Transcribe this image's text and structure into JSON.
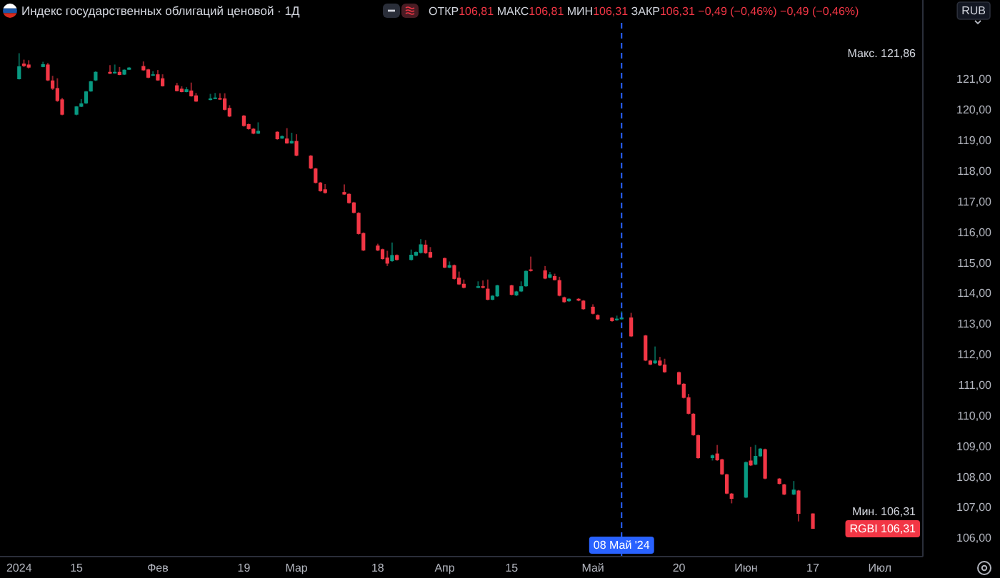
{
  "chart_data": {
    "type": "candlestick",
    "title": "Индекс государственных облигаций ценовой · 1Д",
    "subtitle": "ОТКР106,81 МАКС106,81 МИН106,31 ЗАКР106,31 −0,49 (−0,46%) −0,49 (−0,46%)",
    "x": [
      "2024-01-03",
      "2024-01-04",
      "2024-01-05",
      "2024-01-08",
      "2024-01-09",
      "2024-01-10",
      "2024-01-11",
      "2024-01-12",
      "2024-01-15",
      "2024-01-16",
      "2024-01-17",
      "2024-01-18",
      "2024-01-19",
      "2024-01-22",
      "2024-01-23",
      "2024-01-24",
      "2024-01-25",
      "2024-01-26",
      "2024-01-29",
      "2024-01-30",
      "2024-01-31",
      "2024-02-01",
      "2024-02-02",
      "2024-02-05",
      "2024-02-06",
      "2024-02-07",
      "2024-02-08",
      "2024-02-09",
      "2024-02-12",
      "2024-02-13",
      "2024-02-14",
      "2024-02-15",
      "2024-02-16",
      "2024-02-19",
      "2024-02-20",
      "2024-02-21",
      "2024-02-22",
      "2024-02-26",
      "2024-02-27",
      "2024-02-28",
      "2024-02-29",
      "2024-03-01",
      "2024-03-04",
      "2024-03-05",
      "2024-03-06",
      "2024-03-07",
      "2024-03-11",
      "2024-03-12",
      "2024-03-13",
      "2024-03-14",
      "2024-03-15",
      "2024-03-18",
      "2024-03-19",
      "2024-03-20",
      "2024-03-21",
      "2024-03-22",
      "2024-03-25",
      "2024-03-26",
      "2024-03-27",
      "2024-03-28",
      "2024-03-29",
      "2024-04-01",
      "2024-04-02",
      "2024-04-03",
      "2024-04-04",
      "2024-04-05",
      "2024-04-08",
      "2024-04-09",
      "2024-04-10",
      "2024-04-11",
      "2024-04-12",
      "2024-04-15",
      "2024-04-16",
      "2024-04-17",
      "2024-04-18",
      "2024-04-19",
      "2024-04-22",
      "2024-04-23",
      "2024-04-24",
      "2024-04-25",
      "2024-04-26",
      "2024-04-27",
      "2024-04-29",
      "2024-04-30",
      "2024-05-02",
      "2024-05-03",
      "2024-05-06",
      "2024-05-07",
      "2024-05-08",
      "2024-05-10",
      "2024-05-13",
      "2024-05-14",
      "2024-05-15",
      "2024-05-16",
      "2024-05-17",
      "2024-05-20",
      "2024-05-21",
      "2024-05-22",
      "2024-05-23",
      "2024-05-24",
      "2024-05-27",
      "2024-05-28",
      "2024-05-29",
      "2024-05-30",
      "2024-05-31",
      "2024-06-03",
      "2024-06-04",
      "2024-06-05",
      "2024-06-06",
      "2024-06-07",
      "2024-06-10",
      "2024-06-11",
      "2024-06-13",
      "2024-06-14",
      "2024-06-17"
    ],
    "ohlc": [
      [
        121.01,
        121.86,
        121.0,
        121.43
      ],
      [
        121.52,
        121.65,
        121.41,
        121.44
      ],
      [
        121.49,
        121.63,
        121.36,
        121.39
      ],
      [
        121.41,
        121.58,
        121.4,
        121.5
      ],
      [
        121.49,
        121.54,
        120.95,
        120.97
      ],
      [
        120.97,
        121.12,
        120.66,
        120.7
      ],
      [
        120.72,
        121.04,
        120.27,
        120.3
      ],
      [
        120.35,
        120.4,
        119.83,
        119.85
      ],
      [
        119.85,
        120.13,
        119.83,
        120.12
      ],
      [
        120.11,
        120.36,
        120.1,
        120.22
      ],
      [
        120.22,
        120.63,
        120.2,
        120.61
      ],
      [
        120.61,
        120.96,
        120.6,
        120.94
      ],
      [
        120.97,
        121.27,
        120.95,
        121.25
      ],
      [
        121.25,
        121.47,
        121.18,
        121.19
      ],
      [
        121.2,
        121.49,
        121.19,
        121.25
      ],
      [
        121.25,
        121.41,
        121.14,
        121.15
      ],
      [
        121.16,
        121.33,
        121.15,
        121.32
      ],
      [
        121.32,
        121.41,
        121.31,
        121.39
      ],
      [
        121.44,
        121.59,
        121.29,
        121.3
      ],
      [
        121.33,
        121.35,
        121.04,
        121.06
      ],
      [
        121.14,
        121.27,
        121.12,
        121.17
      ],
      [
        121.17,
        121.31,
        120.96,
        120.97
      ],
      [
        121.04,
        121.17,
        120.77,
        120.78
      ],
      [
        120.81,
        120.89,
        120.61,
        120.62
      ],
      [
        120.7,
        120.78,
        120.58,
        120.59
      ],
      [
        120.59,
        120.75,
        120.58,
        120.68
      ],
      [
        120.64,
        120.9,
        120.44,
        120.45
      ],
      [
        120.48,
        120.56,
        120.27,
        120.28
      ],
      [
        120.33,
        120.53,
        120.32,
        120.38
      ],
      [
        120.37,
        120.56,
        120.36,
        120.41
      ],
      [
        120.39,
        120.55,
        120.34,
        120.35
      ],
      [
        120.38,
        120.55,
        119.99,
        120.01
      ],
      [
        120.07,
        120.16,
        119.77,
        119.79
      ],
      [
        119.82,
        119.84,
        119.46,
        119.48
      ],
      [
        119.54,
        119.56,
        119.36,
        119.38
      ],
      [
        119.39,
        119.41,
        119.21,
        119.23
      ],
      [
        119.23,
        119.6,
        119.22,
        119.32
      ],
      [
        119.29,
        119.31,
        119.03,
        119.05
      ],
      [
        119.07,
        119.17,
        119.06,
        119.15
      ],
      [
        119.07,
        119.41,
        118.9,
        118.91
      ],
      [
        118.91,
        119.26,
        118.9,
        118.99
      ],
      [
        118.99,
        119.21,
        118.49,
        118.51
      ],
      [
        118.51,
        118.53,
        118.07,
        118.09
      ],
      [
        118.09,
        118.11,
        117.6,
        117.62
      ],
      [
        117.63,
        117.65,
        117.33,
        117.35
      ],
      [
        117.41,
        117.58,
        117.27,
        117.29
      ],
      [
        117.32,
        117.57,
        117.23,
        117.24
      ],
      [
        117.26,
        117.28,
        116.94,
        116.96
      ],
      [
        116.98,
        117.0,
        116.62,
        116.64
      ],
      [
        116.64,
        116.66,
        115.93,
        115.95
      ],
      [
        115.98,
        116.0,
        115.39,
        115.41
      ],
      [
        115.57,
        115.63,
        115.39,
        115.41
      ],
      [
        115.45,
        115.47,
        115.11,
        115.13
      ],
      [
        115.18,
        115.4,
        114.9,
        114.98
      ],
      [
        115.06,
        115.67,
        115.04,
        115.26
      ],
      [
        115.26,
        115.28,
        115.08,
        115.1
      ],
      [
        115.1,
        115.44,
        115.08,
        115.27
      ],
      [
        115.24,
        115.38,
        115.22,
        115.36
      ],
      [
        115.33,
        115.78,
        115.31,
        115.61
      ],
      [
        115.6,
        115.75,
        115.3,
        115.32
      ],
      [
        115.36,
        115.52,
        115.16,
        115.18
      ],
      [
        115.16,
        115.18,
        114.83,
        114.85
      ],
      [
        114.85,
        115.05,
        114.83,
        114.93
      ],
      [
        114.93,
        114.95,
        114.46,
        114.48
      ],
      [
        114.52,
        114.72,
        114.28,
        114.3
      ],
      [
        114.32,
        114.46,
        114.17,
        114.19
      ],
      [
        114.19,
        114.4,
        114.18,
        114.24
      ],
      [
        114.24,
        114.43,
        114.17,
        114.19
      ],
      [
        114.16,
        114.46,
        113.78,
        113.8
      ],
      [
        113.8,
        113.95,
        113.78,
        113.93
      ],
      [
        113.91,
        114.29,
        113.89,
        114.27
      ],
      [
        114.27,
        114.29,
        113.94,
        113.96
      ],
      [
        113.94,
        114.09,
        113.92,
        114.07
      ],
      [
        114.07,
        114.4,
        114.05,
        114.24
      ],
      [
        114.24,
        114.76,
        114.22,
        114.74
      ],
      [
        114.79,
        115.21,
        114.72,
        114.74
      ],
      [
        114.76,
        114.9,
        114.47,
        114.49
      ],
      [
        114.52,
        114.71,
        114.5,
        114.63
      ],
      [
        114.57,
        114.65,
        114.43,
        114.44
      ],
      [
        114.44,
        114.55,
        113.91,
        113.93
      ],
      [
        113.88,
        113.9,
        113.7,
        113.72
      ],
      [
        113.75,
        113.85,
        113.73,
        113.83
      ],
      [
        113.83,
        113.85,
        113.75,
        113.77
      ],
      [
        113.77,
        113.79,
        113.47,
        113.49
      ],
      [
        113.57,
        113.65,
        113.32,
        113.34
      ],
      [
        113.3,
        113.32,
        113.14,
        113.16
      ],
      [
        113.21,
        113.23,
        113.08,
        113.1
      ],
      [
        113.13,
        113.28,
        113.11,
        113.18
      ],
      [
        113.16,
        113.42,
        113.14,
        113.22
      ],
      [
        113.22,
        113.37,
        112.58,
        112.6
      ],
      [
        112.63,
        112.65,
        111.79,
        111.81
      ],
      [
        111.81,
        111.83,
        111.66,
        111.68
      ],
      [
        111.72,
        112.27,
        111.7,
        111.81
      ],
      [
        111.81,
        111.93,
        111.63,
        111.65
      ],
      [
        111.68,
        111.87,
        111.41,
        111.43
      ],
      [
        111.43,
        111.45,
        111.01,
        111.03
      ],
      [
        111.05,
        111.07,
        110.57,
        110.59
      ],
      [
        110.61,
        110.72,
        110.05,
        110.07
      ],
      [
        110.07,
        110.09,
        109.35,
        109.37
      ],
      [
        109.37,
        109.39,
        108.6,
        108.62
      ],
      [
        108.62,
        108.74,
        108.54,
        108.71
      ],
      [
        108.77,
        109.05,
        108.53,
        108.55
      ],
      [
        108.58,
        108.6,
        108.07,
        108.09
      ],
      [
        108.09,
        108.11,
        107.44,
        107.46
      ],
      [
        107.46,
        107.48,
        107.14,
        107.29
      ],
      [
        107.33,
        108.51,
        107.31,
        108.49
      ],
      [
        108.54,
        108.99,
        108.36,
        108.38
      ],
      [
        108.41,
        109.05,
        108.39,
        108.69
      ],
      [
        108.68,
        108.95,
        108.66,
        108.93
      ],
      [
        108.91,
        108.93,
        107.93,
        107.95
      ],
      [
        107.95,
        107.97,
        107.76,
        107.78
      ],
      [
        107.76,
        107.78,
        107.41,
        107.43
      ],
      [
        107.43,
        107.87,
        107.41,
        107.59
      ],
      [
        107.56,
        107.58,
        106.55,
        106.8
      ],
      [
        106.81,
        106.81,
        106.31,
        106.31
      ]
    ],
    "colors": [
      "#089981",
      "#f23645",
      "#f23645",
      "#089981",
      "#f23645",
      "#f23645",
      "#f23645",
      "#f23645",
      "#089981",
      "#089981",
      "#089981",
      "#089981",
      "#089981",
      "#f23645",
      "#089981",
      "#f23645",
      "#089981",
      "#089981",
      "#f23645",
      "#f23645",
      "#089981",
      "#f23645",
      "#f23645",
      "#f23645",
      "#f23645",
      "#089981",
      "#f23645",
      "#f23645",
      "#089981",
      "#089981",
      "#f23645",
      "#f23645",
      "#f23645",
      "#f23645",
      "#f23645",
      "#f23645",
      "#089981",
      "#f23645",
      "#089981",
      "#f23645",
      "#089981",
      "#f23645",
      "#f23645",
      "#f23645",
      "#f23645",
      "#f23645",
      "#f23645",
      "#f23645",
      "#f23645",
      "#f23645",
      "#f23645",
      "#f23645",
      "#f23645",
      "#f23645",
      "#089981",
      "#f23645",
      "#089981",
      "#089981",
      "#089981",
      "#f23645",
      "#f23645",
      "#f23645",
      "#089981",
      "#f23645",
      "#f23645",
      "#f23645",
      "#089981",
      "#f23645",
      "#f23645",
      "#089981",
      "#089981",
      "#f23645",
      "#089981",
      "#089981",
      "#089981",
      "#f23645",
      "#f23645",
      "#089981",
      "#f23645",
      "#f23645",
      "#f23645",
      "#089981",
      "#f23645",
      "#f23645",
      "#f23645",
      "#f23645",
      "#f23645",
      "#089981",
      "#089981",
      "#f23645",
      "#f23645",
      "#f23645",
      "#089981",
      "#f23645",
      "#f23645",
      "#f23645",
      "#f23645",
      "#f23645",
      "#f23645",
      "#f23645",
      "#089981",
      "#f23645",
      "#f23645",
      "#f23645",
      "#f23645",
      "#089981",
      "#f23645",
      "#089981",
      "#089981",
      "#f23645",
      "#f23645",
      "#f23645",
      "#089981",
      "#f23645",
      "#f23645"
    ],
    "xlim": [
      "2023-12-30",
      "2024-07-10"
    ],
    "xticks": [
      {
        "value": "2024-01-03",
        "label": "2024"
      },
      {
        "value": "2024-01-15",
        "label": "15"
      },
      {
        "value": "2024-02-01",
        "label": "Фев"
      },
      {
        "value": "2024-02-19",
        "label": "19"
      },
      {
        "value": "2024-03-01",
        "label": "Мар"
      },
      {
        "value": "2024-03-18",
        "label": "18"
      },
      {
        "value": "2024-04-01",
        "label": "Апр"
      },
      {
        "value": "2024-04-15",
        "label": "15"
      },
      {
        "value": "2024-05-02",
        "label": "Май"
      },
      {
        "value": "2024-05-20",
        "label": "20"
      },
      {
        "value": "2024-06-03",
        "label": "Июн"
      },
      {
        "value": "2024-06-17",
        "label": "17"
      },
      {
        "value": "2024-07-01",
        "label": "Июл"
      }
    ],
    "ylim": [
      105.4,
      123.6
    ],
    "yticks": [
      {
        "value": 106,
        "label": "106,00"
      },
      {
        "value": 107,
        "label": "107,00"
      },
      {
        "value": 108,
        "label": "108,00"
      },
      {
        "value": 109,
        "label": "109,00"
      },
      {
        "value": 110,
        "label": "110,00"
      },
      {
        "value": 111,
        "label": "111,00"
      },
      {
        "value": 112,
        "label": "112,00"
      },
      {
        "value": 113,
        "label": "113,00"
      },
      {
        "value": 114,
        "label": "114,00"
      },
      {
        "value": 115,
        "label": "115,00"
      },
      {
        "value": 116,
        "label": "116,00"
      },
      {
        "value": 117,
        "label": "117,00"
      },
      {
        "value": 118,
        "label": "118,00"
      },
      {
        "value": 119,
        "label": "119,00"
      },
      {
        "value": 120,
        "label": "120,00"
      },
      {
        "value": 121,
        "label": "121,00"
      }
    ],
    "ref_lines": [
      {
        "axis": "x",
        "value": "2024-05-08",
        "label": "08 Май '24",
        "color": "#2962ff",
        "line_style": "dashed"
      }
    ],
    "annotations": [
      "Макс. 121,86",
      "Мин. 106,31",
      "RGBI 106,31",
      "RUB"
    ]
  }
}
